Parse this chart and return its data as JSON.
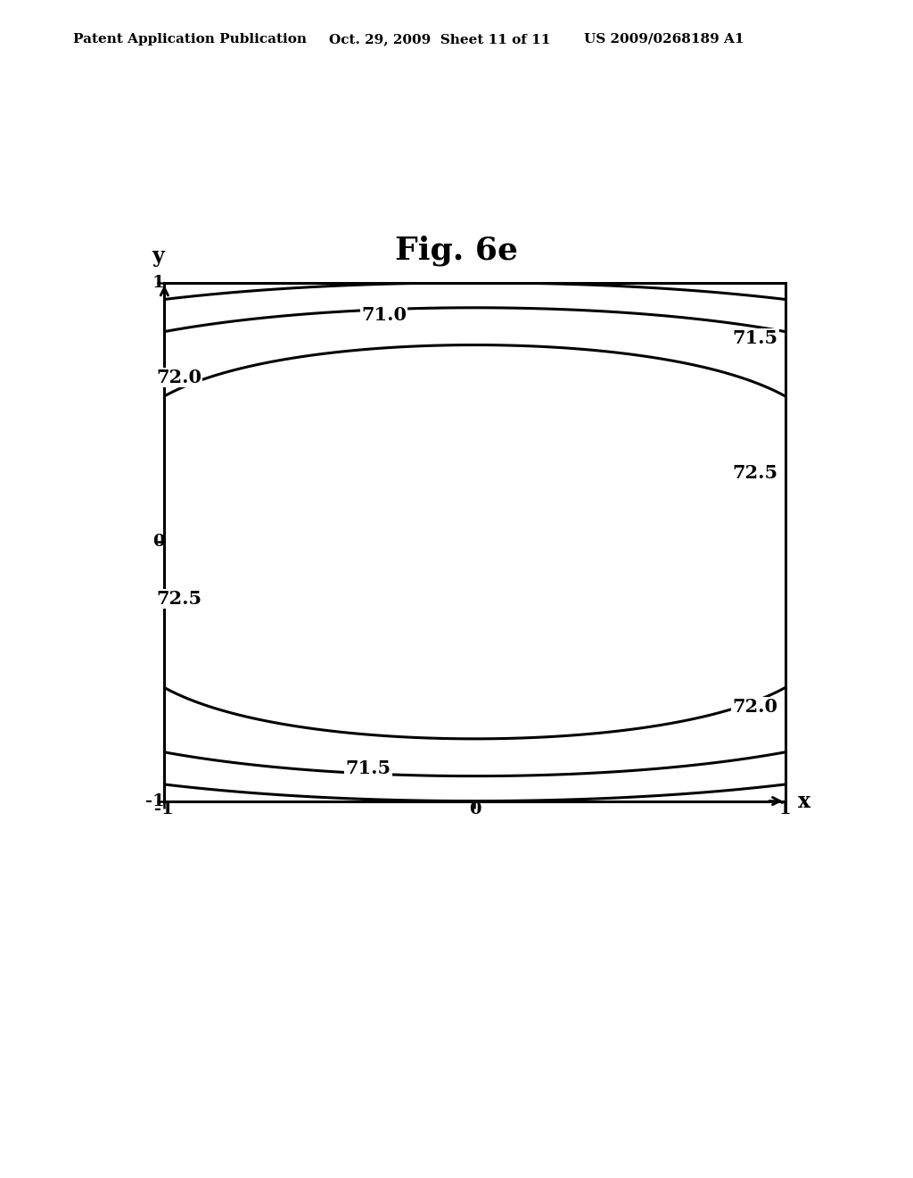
{
  "title": "Fig. 6e",
  "header_left": "Patent Application Publication",
  "header_mid": "Oct. 29, 2009  Sheet 11 of 11",
  "header_right": "US 2009/0268189 A1",
  "xlim": [
    -1.0,
    1.0
  ],
  "ylim": [
    -1.0,
    1.0
  ],
  "xlabel": "x",
  "ylabel": "y",
  "xticks": [
    -1,
    0,
    1
  ],
  "yticks": [
    -1,
    0,
    1
  ],
  "contour_levels": [
    71.0,
    71.5,
    72.0,
    72.5
  ],
  "background_color": "#ffffff",
  "line_color": "#000000",
  "linewidth": 2.2,
  "title_fontsize": 26,
  "label_fontsize": 15,
  "tick_fontsize": 14,
  "header_fontsize": 11,
  "func_A": 72.5,
  "func_a": 0.35,
  "func_b": 6.0,
  "func_n": 4
}
